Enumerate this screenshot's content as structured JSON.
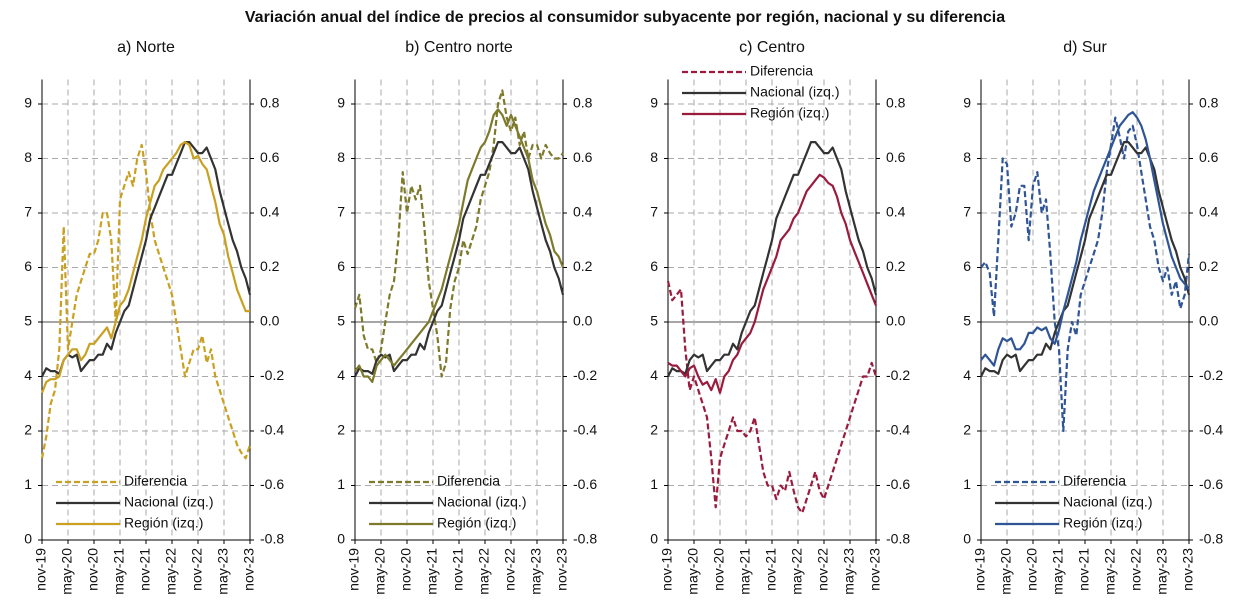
{
  "title": "Variación anual del índice de precios al consumidor subyacente por región, nacional y su diferencia",
  "chart_data": [
    {
      "type": "line",
      "title": "a) Norte",
      "legend": "lower left",
      "categories": [
        "nov-19",
        null,
        null,
        null,
        null,
        null,
        "may-20",
        null,
        null,
        null,
        null,
        null,
        "nov-20",
        null,
        null,
        null,
        null,
        null,
        "may-21",
        null,
        null,
        null,
        null,
        null,
        "nov-21",
        null,
        null,
        null,
        null,
        null,
        "may-22",
        null,
        null,
        null,
        null,
        null,
        "nov-22",
        null,
        null,
        null,
        null,
        null,
        "may-23",
        null,
        null,
        null,
        null,
        null,
        "nov-23"
      ],
      "ylim": [
        1,
        9.45
      ],
      "yticks": [
        {
          "value": 1,
          "label": "0"
        },
        {
          "value": 2,
          "label": "1"
        },
        {
          "value": 3,
          "label": "2"
        },
        4,
        5,
        6,
        7,
        8,
        9
      ],
      "y2lim": [
        -0.8,
        0.89
      ],
      "y2ticks": [
        -0.8,
        -0.6,
        -0.4,
        -0.2,
        {
          "value": 0,
          "label": "0.0"
        },
        0.2,
        0.4,
        0.6,
        0.8
      ],
      "grid": true,
      "series": [
        {
          "name": "Diferencia",
          "color": "#c9a020",
          "axis": "y2",
          "dashed": true,
          "values": [
            -0.5,
            -0.42,
            -0.3,
            -0.25,
            -0.1,
            0.35,
            -0.1,
            0.0,
            0.1,
            0.15,
            0.2,
            0.25,
            0.25,
            0.3,
            0.4,
            0.4,
            0.3,
            0.0,
            0.45,
            0.5,
            0.55,
            0.5,
            0.6,
            0.65,
            0.55,
            0.4,
            0.3,
            0.25,
            0.2,
            0.15,
            0.1,
            0.0,
            -0.1,
            -0.2,
            -0.15,
            -0.1,
            -0.1,
            -0.05,
            -0.15,
            -0.1,
            -0.2,
            -0.25,
            -0.3,
            -0.35,
            -0.4,
            -0.45,
            -0.48,
            -0.5,
            -0.45
          ]
        },
        {
          "name": "Nacional (izq.)",
          "color": "#333333",
          "values": [
            4.0,
            4.15,
            4.1,
            4.1,
            4.05,
            4.3,
            4.4,
            4.35,
            4.4,
            4.1,
            4.2,
            4.3,
            4.3,
            4.4,
            4.4,
            4.6,
            4.5,
            4.8,
            5.0,
            5.2,
            5.3,
            5.6,
            5.9,
            6.2,
            6.5,
            6.9,
            7.1,
            7.3,
            7.5,
            7.7,
            7.7,
            7.9,
            8.1,
            8.3,
            8.3,
            8.2,
            8.1,
            8.1,
            8.2,
            8.0,
            7.8,
            7.4,
            7.1,
            6.8,
            6.5,
            6.3,
            6.0,
            5.8,
            5.5
          ]
        },
        {
          "name": "Región (izq.)",
          "color": "#c9a020",
          "values": [
            3.7,
            3.9,
            3.95,
            3.95,
            4.0,
            4.3,
            4.4,
            4.5,
            4.5,
            4.3,
            4.4,
            4.6,
            4.6,
            4.7,
            4.8,
            4.9,
            4.7,
            5.0,
            5.3,
            5.4,
            5.6,
            5.9,
            6.2,
            6.5,
            6.9,
            7.2,
            7.5,
            7.6,
            7.8,
            7.9,
            8.0,
            8.1,
            8.25,
            8.3,
            8.25,
            8.0,
            8.05,
            7.9,
            7.8,
            7.5,
            7.2,
            6.8,
            6.6,
            6.2,
            5.9,
            5.6,
            5.4,
            5.2,
            5.2
          ]
        }
      ]
    },
    {
      "type": "line",
      "title": "b) Centro norte",
      "legend": "lower left",
      "categories": [
        "nov-19",
        null,
        null,
        null,
        null,
        null,
        "may-20",
        null,
        null,
        null,
        null,
        null,
        "nov-20",
        null,
        null,
        null,
        null,
        null,
        "may-21",
        null,
        null,
        null,
        null,
        null,
        "nov-21",
        null,
        null,
        null,
        null,
        null,
        "may-22",
        null,
        null,
        null,
        null,
        null,
        "nov-22",
        null,
        null,
        null,
        null,
        null,
        "may-23",
        null,
        null,
        null,
        null,
        null,
        "nov-23"
      ],
      "ylim": [
        1,
        9.45
      ],
      "yticks": [
        {
          "value": 1,
          "label": "0"
        },
        {
          "value": 2,
          "label": "1"
        },
        {
          "value": 3,
          "label": "2"
        },
        4,
        5,
        6,
        7,
        8,
        9
      ],
      "y2lim": [
        -0.8,
        0.89
      ],
      "y2ticks": [
        -0.8,
        -0.6,
        -0.4,
        -0.2,
        {
          "value": 0,
          "label": "0.0"
        },
        0.2,
        0.4,
        0.6,
        0.8
      ],
      "grid": true,
      "series": [
        {
          "name": "Diferencia",
          "color": "#7d7a2c",
          "axis": "y2",
          "dashed": true,
          "values": [
            0.05,
            0.1,
            -0.05,
            -0.1,
            -0.1,
            -0.15,
            -0.1,
            0.0,
            0.1,
            0.15,
            0.3,
            0.55,
            0.4,
            0.5,
            0.45,
            0.5,
            0.35,
            0.15,
            0.05,
            -0.05,
            -0.2,
            -0.15,
            0.05,
            0.15,
            0.2,
            0.3,
            0.25,
            0.3,
            0.35,
            0.45,
            0.5,
            0.55,
            0.65,
            0.8,
            0.85,
            0.75,
            0.7,
            0.75,
            0.65,
            0.7,
            0.6,
            0.65,
            0.65,
            0.6,
            0.65,
            0.62,
            0.6,
            0.6,
            0.62
          ]
        },
        {
          "name": "Nacional (izq.)",
          "color": "#333333",
          "values": [
            4.0,
            4.15,
            4.1,
            4.1,
            4.05,
            4.3,
            4.4,
            4.35,
            4.4,
            4.1,
            4.2,
            4.3,
            4.3,
            4.4,
            4.4,
            4.6,
            4.5,
            4.8,
            5.0,
            5.2,
            5.3,
            5.6,
            5.9,
            6.2,
            6.5,
            6.9,
            7.1,
            7.3,
            7.5,
            7.7,
            7.7,
            7.9,
            8.1,
            8.3,
            8.3,
            8.2,
            8.1,
            8.1,
            8.2,
            8.0,
            7.8,
            7.4,
            7.1,
            6.8,
            6.5,
            6.3,
            6.0,
            5.8,
            5.5
          ]
        },
        {
          "name": "Región (izq.)",
          "color": "#7d7a2c",
          "values": [
            4.1,
            4.2,
            4.0,
            4.0,
            3.9,
            4.2,
            4.3,
            4.4,
            4.3,
            4.2,
            4.3,
            4.4,
            4.5,
            4.6,
            4.7,
            4.8,
            4.9,
            5.0,
            5.2,
            5.4,
            5.6,
            5.9,
            6.2,
            6.5,
            6.8,
            7.2,
            7.6,
            7.8,
            8.0,
            8.2,
            8.3,
            8.5,
            8.8,
            8.9,
            8.8,
            8.6,
            8.8,
            8.6,
            8.4,
            8.2,
            8.0,
            7.6,
            7.4,
            7.1,
            6.8,
            6.6,
            6.3,
            6.2,
            6.0
          ]
        }
      ]
    },
    {
      "type": "line",
      "title": "c) Centro",
      "legend": "upper left",
      "categories": [
        "nov-19",
        null,
        null,
        null,
        null,
        null,
        "may-20",
        null,
        null,
        null,
        null,
        null,
        "nov-20",
        null,
        null,
        null,
        null,
        null,
        "may-21",
        null,
        null,
        null,
        null,
        null,
        "nov-21",
        null,
        null,
        null,
        null,
        null,
        "may-22",
        null,
        null,
        null,
        null,
        null,
        "nov-22",
        null,
        null,
        null,
        null,
        null,
        "may-23",
        null,
        null,
        null,
        null,
        null,
        "nov-23"
      ],
      "ylim": [
        1,
        9.45
      ],
      "yticks": [
        {
          "value": 1,
          "label": "0"
        },
        {
          "value": 2,
          "label": "1"
        },
        {
          "value": 3,
          "label": "2"
        },
        4,
        5,
        6,
        7,
        8,
        9
      ],
      "y2lim": [
        -0.8,
        0.89
      ],
      "y2ticks": [
        -0.8,
        -0.6,
        -0.4,
        -0.2,
        {
          "value": 0,
          "label": "0.0"
        },
        0.2,
        0.4,
        0.6,
        0.8
      ],
      "grid": true,
      "series": [
        {
          "name": "Diferencia",
          "color": "#9b1b3f",
          "axis": "y2",
          "dashed": true,
          "values": [
            0.15,
            0.08,
            0.1,
            0.12,
            -0.1,
            -0.25,
            -0.2,
            -0.25,
            -0.3,
            -0.35,
            -0.5,
            -0.68,
            -0.5,
            -0.45,
            -0.4,
            -0.35,
            -0.4,
            -0.4,
            -0.42,
            -0.4,
            -0.35,
            -0.45,
            -0.55,
            -0.6,
            -0.6,
            -0.65,
            -0.6,
            -0.62,
            -0.55,
            -0.62,
            -0.68,
            -0.7,
            -0.65,
            -0.6,
            -0.55,
            -0.62,
            -0.65,
            -0.6,
            -0.55,
            -0.5,
            -0.45,
            -0.4,
            -0.35,
            -0.3,
            -0.25,
            -0.2,
            -0.2,
            -0.15,
            -0.2
          ]
        },
        {
          "name": "Nacional (izq.)",
          "color": "#333333",
          "values": [
            4.0,
            4.15,
            4.1,
            4.1,
            4.05,
            4.3,
            4.4,
            4.35,
            4.4,
            4.1,
            4.2,
            4.3,
            4.3,
            4.4,
            4.4,
            4.6,
            4.5,
            4.8,
            5.0,
            5.2,
            5.3,
            5.6,
            5.9,
            6.2,
            6.5,
            6.9,
            7.1,
            7.3,
            7.5,
            7.7,
            7.7,
            7.9,
            8.1,
            8.3,
            8.3,
            8.2,
            8.1,
            8.1,
            8.2,
            8.0,
            7.8,
            7.4,
            7.1,
            6.8,
            6.5,
            6.3,
            6.0,
            5.8,
            5.5
          ]
        },
        {
          "name": "Región (izq.)",
          "color": "#9b1b3f",
          "values": [
            4.25,
            4.2,
            4.2,
            4.1,
            4.0,
            4.15,
            4.2,
            4.0,
            3.85,
            3.9,
            3.75,
            3.95,
            3.7,
            4.0,
            4.1,
            4.3,
            4.4,
            4.6,
            4.7,
            4.8,
            5.0,
            5.3,
            5.6,
            5.8,
            6.0,
            6.2,
            6.5,
            6.6,
            6.7,
            6.9,
            7.0,
            7.2,
            7.4,
            7.5,
            7.6,
            7.7,
            7.65,
            7.55,
            7.5,
            7.3,
            7.0,
            6.8,
            6.5,
            6.3,
            6.1,
            5.9,
            5.7,
            5.5,
            5.3
          ]
        }
      ]
    },
    {
      "type": "line",
      "title": "d) Sur",
      "legend": "lower left",
      "categories": [
        "nov-19",
        null,
        null,
        null,
        null,
        null,
        "may-20",
        null,
        null,
        null,
        null,
        null,
        "nov-20",
        null,
        null,
        null,
        null,
        null,
        "may-21",
        null,
        null,
        null,
        null,
        null,
        "nov-21",
        null,
        null,
        null,
        null,
        null,
        "may-22",
        null,
        null,
        null,
        null,
        null,
        "nov-22",
        null,
        null,
        null,
        null,
        null,
        "may-23",
        null,
        null,
        null,
        null,
        null,
        "nov-23"
      ],
      "ylim": [
        1,
        9.45
      ],
      "yticks": [
        {
          "value": 1,
          "label": "0"
        },
        {
          "value": 2,
          "label": "1"
        },
        {
          "value": 3,
          "label": "2"
        },
        4,
        5,
        6,
        7,
        8,
        9
      ],
      "y2lim": [
        -0.8,
        0.89
      ],
      "y2ticks": [
        -0.8,
        -0.6,
        -0.4,
        -0.2,
        {
          "value": 0,
          "label": "0.0"
        },
        0.2,
        0.4,
        0.6,
        0.8
      ],
      "grid": true,
      "series": [
        {
          "name": "Diferencia",
          "color": "#2f5597",
          "axis": "y2",
          "dashed": true,
          "values": [
            0.2,
            0.22,
            0.18,
            0.02,
            0.3,
            0.6,
            0.58,
            0.35,
            0.4,
            0.5,
            0.5,
            0.3,
            0.5,
            0.55,
            0.4,
            0.45,
            0.25,
            0.0,
            -0.1,
            -0.4,
            -0.1,
            0.0,
            -0.05,
            0.1,
            0.15,
            0.2,
            0.25,
            0.3,
            0.4,
            0.55,
            0.65,
            0.75,
            0.68,
            0.6,
            0.7,
            0.72,
            0.65,
            0.55,
            0.45,
            0.35,
            0.3,
            0.2,
            0.15,
            0.2,
            0.1,
            0.15,
            0.05,
            0.1,
            0.25
          ]
        },
        {
          "name": "Nacional (izq.)",
          "color": "#333333",
          "values": [
            4.0,
            4.15,
            4.1,
            4.1,
            4.05,
            4.3,
            4.4,
            4.35,
            4.4,
            4.1,
            4.2,
            4.3,
            4.3,
            4.4,
            4.4,
            4.6,
            4.5,
            4.8,
            5.0,
            5.2,
            5.3,
            5.6,
            5.9,
            6.2,
            6.5,
            6.9,
            7.1,
            7.3,
            7.5,
            7.7,
            7.7,
            7.9,
            8.1,
            8.3,
            8.3,
            8.2,
            8.1,
            8.1,
            8.2,
            8.0,
            7.8,
            7.4,
            7.1,
            6.8,
            6.5,
            6.3,
            6.0,
            5.8,
            5.5
          ]
        },
        {
          "name": "Región (izq.)",
          "color": "#2f5597",
          "values": [
            4.3,
            4.4,
            4.3,
            4.2,
            4.5,
            4.7,
            4.65,
            4.7,
            4.5,
            4.5,
            4.6,
            4.8,
            4.8,
            4.9,
            4.85,
            4.9,
            4.7,
            4.6,
            4.85,
            5.2,
            5.5,
            5.8,
            6.1,
            6.5,
            6.8,
            7.1,
            7.4,
            7.6,
            7.8,
            8.0,
            8.2,
            8.4,
            8.6,
            8.7,
            8.8,
            8.85,
            8.75,
            8.6,
            8.35,
            8.0,
            7.6,
            7.2,
            6.8,
            6.5,
            6.2,
            6.0,
            5.8,
            5.7,
            5.6
          ]
        }
      ]
    }
  ]
}
